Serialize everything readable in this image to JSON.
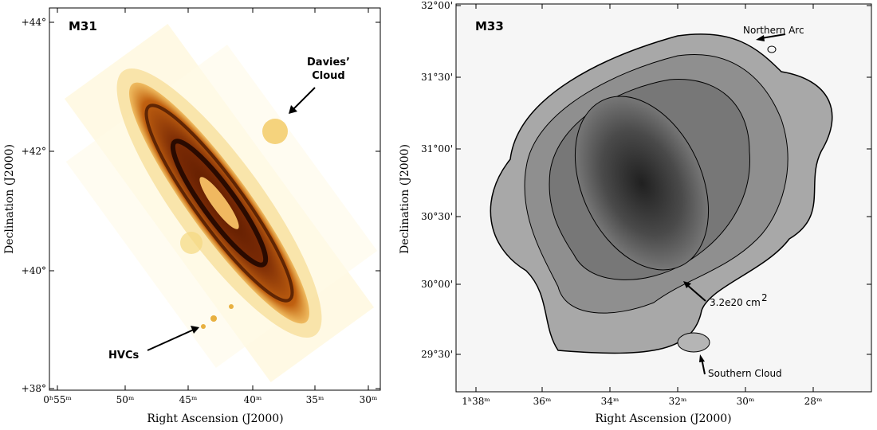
{
  "panels": [
    {
      "label": "M31",
      "y_axis_label": "Declination (J2000)",
      "x_axis_label": "Right Ascension (J2000)",
      "yticks": [
        "+44°",
        "+42°",
        "+40°",
        "+38°"
      ],
      "xticks": [
        "0ʰ55ᵐ",
        "50ᵐ",
        "45ᵐ",
        "40ᵐ",
        "35ᵐ",
        "30ᵐ"
      ],
      "annotations": {
        "davies_line1": "Davies’",
        "davies_line2": "Cloud",
        "hvcs": "HVCs"
      }
    },
    {
      "label": "M33",
      "y_axis_label": "Declination (J2000)",
      "x_axis_label": "Right Ascension (J2000)",
      "yticks": [
        "32°00'",
        "31°30'",
        "31°00'",
        "30°30'",
        "30°00'",
        "29°30'"
      ],
      "xticks": [
        "1ʰ38ᵐ",
        "36ᵐ",
        "34ᵐ",
        "32ᵐ",
        "30ᵐ",
        "28ᵐ"
      ],
      "annotations": {
        "northern_arc": "Northern Arc",
        "contour_level": "3.2e20 cm",
        "contour_exp": "2",
        "southern_cloud": "Southern Cloud"
      }
    }
  ]
}
